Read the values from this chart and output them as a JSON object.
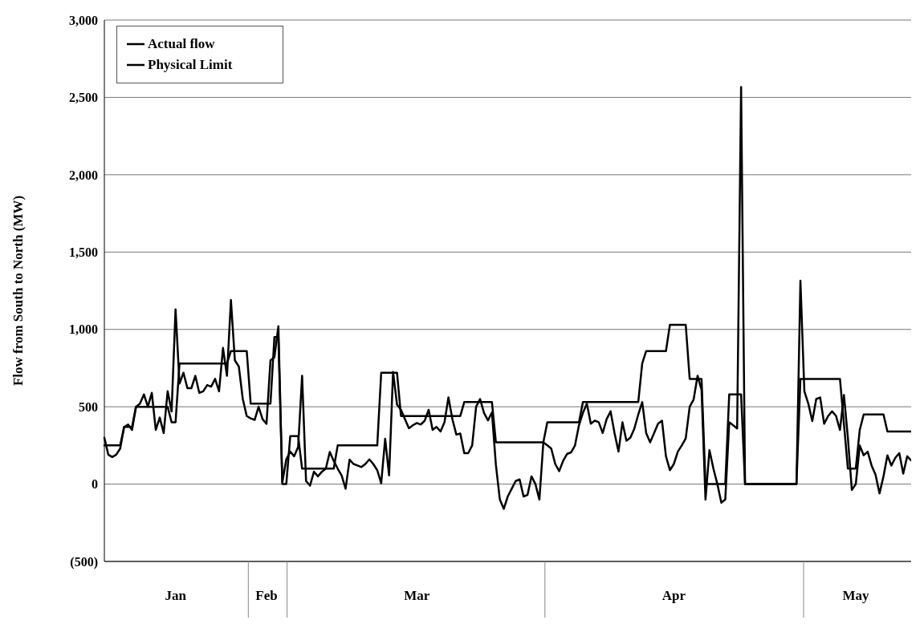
{
  "chart_data": {
    "type": "line",
    "ylabel": "Flow from South to North (MW)",
    "categories": [
      null,
      null,
      null,
      null,
      null,
      null,
      null,
      null,
      null,
      null,
      null,
      null,
      null,
      null,
      null,
      null,
      null,
      null,
      "Jan",
      null,
      null,
      null,
      null,
      null,
      null,
      null,
      null,
      null,
      null,
      null,
      null,
      null,
      null,
      null,
      null,
      null,
      null,
      null,
      null,
      null,
      null,
      "Feb",
      null,
      null,
      null,
      null,
      null,
      null,
      null,
      null,
      null,
      null,
      null,
      null,
      null,
      null,
      null,
      null,
      null,
      null,
      null,
      null,
      null,
      null,
      null,
      null,
      null,
      null,
      null,
      null,
      null,
      null,
      null,
      null,
      null,
      null,
      null,
      null,
      null,
      "Mar",
      null,
      null,
      null,
      null,
      null,
      null,
      null,
      null,
      null,
      null,
      null,
      null,
      null,
      null,
      null,
      null,
      null,
      null,
      null,
      null,
      null,
      null,
      null,
      null,
      null,
      null,
      null,
      null,
      null,
      null,
      null,
      null,
      null,
      null,
      null,
      null,
      null,
      null,
      null,
      null,
      null,
      null,
      null,
      null,
      null,
      null,
      null,
      null,
      null,
      null,
      null,
      null,
      null,
      null,
      null,
      null,
      null,
      null,
      null,
      null,
      null,
      null,
      null,
      null,
      "Apr",
      null,
      null,
      null,
      null,
      null,
      null,
      null,
      null,
      null,
      null,
      null,
      null,
      null,
      null,
      null,
      null,
      null,
      null,
      null,
      null,
      null,
      null,
      null,
      null,
      null,
      null,
      null,
      null,
      null,
      null,
      null,
      null,
      null,
      null,
      null,
      null,
      null,
      null,
      null,
      null,
      null,
      null,
      null,
      null,
      null,
      "May",
      null,
      null,
      null,
      null,
      null,
      null,
      null,
      null,
      null,
      null,
      null,
      null,
      null,
      null
    ],
    "ylim": [
      -500,
      3000
    ],
    "yticks": [
      {
        "value": -500,
        "label": "(500)"
      },
      0,
      500,
      {
        "value": 1000,
        "label": "1,000"
      },
      {
        "value": 1500,
        "label": "1,500"
      },
      {
        "value": 2000,
        "label": "2,000"
      },
      {
        "value": 2500,
        "label": "2,500"
      },
      {
        "value": 3000,
        "label": "3,000"
      }
    ],
    "grid": "y",
    "legend": "top left",
    "line_style": "solid",
    "series": [
      {
        "name": "Actual flow",
        "color": "#000000",
        "values": [
          300,
          190,
          175,
          190,
          230,
          370,
          385,
          350,
          500,
          520,
          580,
          500,
          590,
          350,
          430,
          330,
          600,
          470,
          1130,
          650,
          720,
          620,
          620,
          700,
          590,
          600,
          640,
          630,
          680,
          600,
          880,
          700,
          1190,
          800,
          760,
          550,
          440,
          425,
          415,
          500,
          420,
          390,
          800,
          820,
          1020,
          10,
          160,
          210,
          180,
          240,
          700,
          20,
          -10,
          80,
          50,
          80,
          100,
          208,
          150,
          100,
          56,
          -30,
          158,
          130,
          120,
          110,
          130,
          160,
          130,
          90,
          5,
          293,
          56,
          725,
          514,
          480,
          420,
          361,
          380,
          395,
          385,
          410,
          480,
          350,
          370,
          340,
          400,
          560,
          420,
          320,
          327,
          200,
          200,
          250,
          500,
          550,
          460,
          412,
          463,
          124,
          -100,
          -160,
          -80,
          -30,
          20,
          30,
          -80,
          -70,
          50,
          0,
          -100,
          270,
          250,
          230,
          130,
          84,
          150,
          195,
          205,
          250,
          380,
          460,
          520,
          390,
          410,
          400,
          330,
          420,
          470,
          330,
          210,
          400,
          280,
          300,
          358,
          450,
          530,
          330,
          270,
          330,
          390,
          410,
          180,
          90,
          130,
          210,
          250,
          295,
          500,
          547,
          700,
          610,
          -100,
          220,
          100,
          0,
          -120,
          -100,
          400,
          380,
          360,
          2567,
          0,
          0,
          0,
          0,
          0,
          0,
          0,
          0,
          0,
          0,
          0,
          0,
          0,
          0,
          1315,
          600,
          520,
          407,
          550,
          560,
          390,
          440,
          470,
          441,
          350,
          576,
          300,
          -38,
          0,
          250,
          186,
          210,
          120,
          60,
          -60,
          50,
          186,
          120,
          170,
          200,
          68,
          180,
          153
        ]
      },
      {
        "name": "Physical Limit",
        "color": "#000000",
        "values": [
          250,
          250,
          250,
          250,
          250,
          370,
          370,
          370,
          500,
          500,
          500,
          500,
          500,
          500,
          500,
          500,
          500,
          400,
          400,
          780,
          780,
          780,
          780,
          780,
          780,
          780,
          780,
          780,
          780,
          780,
          780,
          780,
          860,
          860,
          860,
          860,
          860,
          520,
          520,
          520,
          520,
          520,
          520,
          950,
          950,
          0,
          0,
          310,
          310,
          310,
          100,
          100,
          100,
          100,
          100,
          100,
          100,
          100,
          100,
          250,
          250,
          250,
          250,
          250,
          250,
          250,
          250,
          250,
          250,
          250,
          720,
          720,
          720,
          720,
          720,
          440,
          440,
          440,
          440,
          440,
          440,
          440,
          440,
          440,
          440,
          440,
          440,
          440,
          440,
          440,
          440,
          530,
          530,
          530,
          530,
          530,
          530,
          530,
          530,
          270,
          270,
          270,
          270,
          270,
          270,
          270,
          270,
          270,
          270,
          270,
          270,
          270,
          400,
          400,
          400,
          400,
          400,
          400,
          400,
          400,
          400,
          530,
          530,
          530,
          530,
          530,
          530,
          530,
          530,
          530,
          530,
          530,
          530,
          530,
          530,
          530,
          780,
          860,
          860,
          860,
          860,
          860,
          860,
          1030,
          1030,
          1030,
          1030,
          1030,
          680,
          680,
          680,
          680,
          0,
          0,
          0,
          0,
          0,
          0,
          580,
          580,
          580,
          580,
          0,
          0,
          0,
          0,
          0,
          0,
          0,
          0,
          0,
          0,
          0,
          0,
          0,
          0,
          680,
          680,
          680,
          680,
          680,
          680,
          680,
          680,
          680,
          680,
          680,
          390,
          100,
          100,
          100,
          350,
          450,
          450,
          450,
          450,
          450,
          450,
          340,
          340,
          340,
          340,
          340,
          340,
          340
        ]
      }
    ]
  }
}
